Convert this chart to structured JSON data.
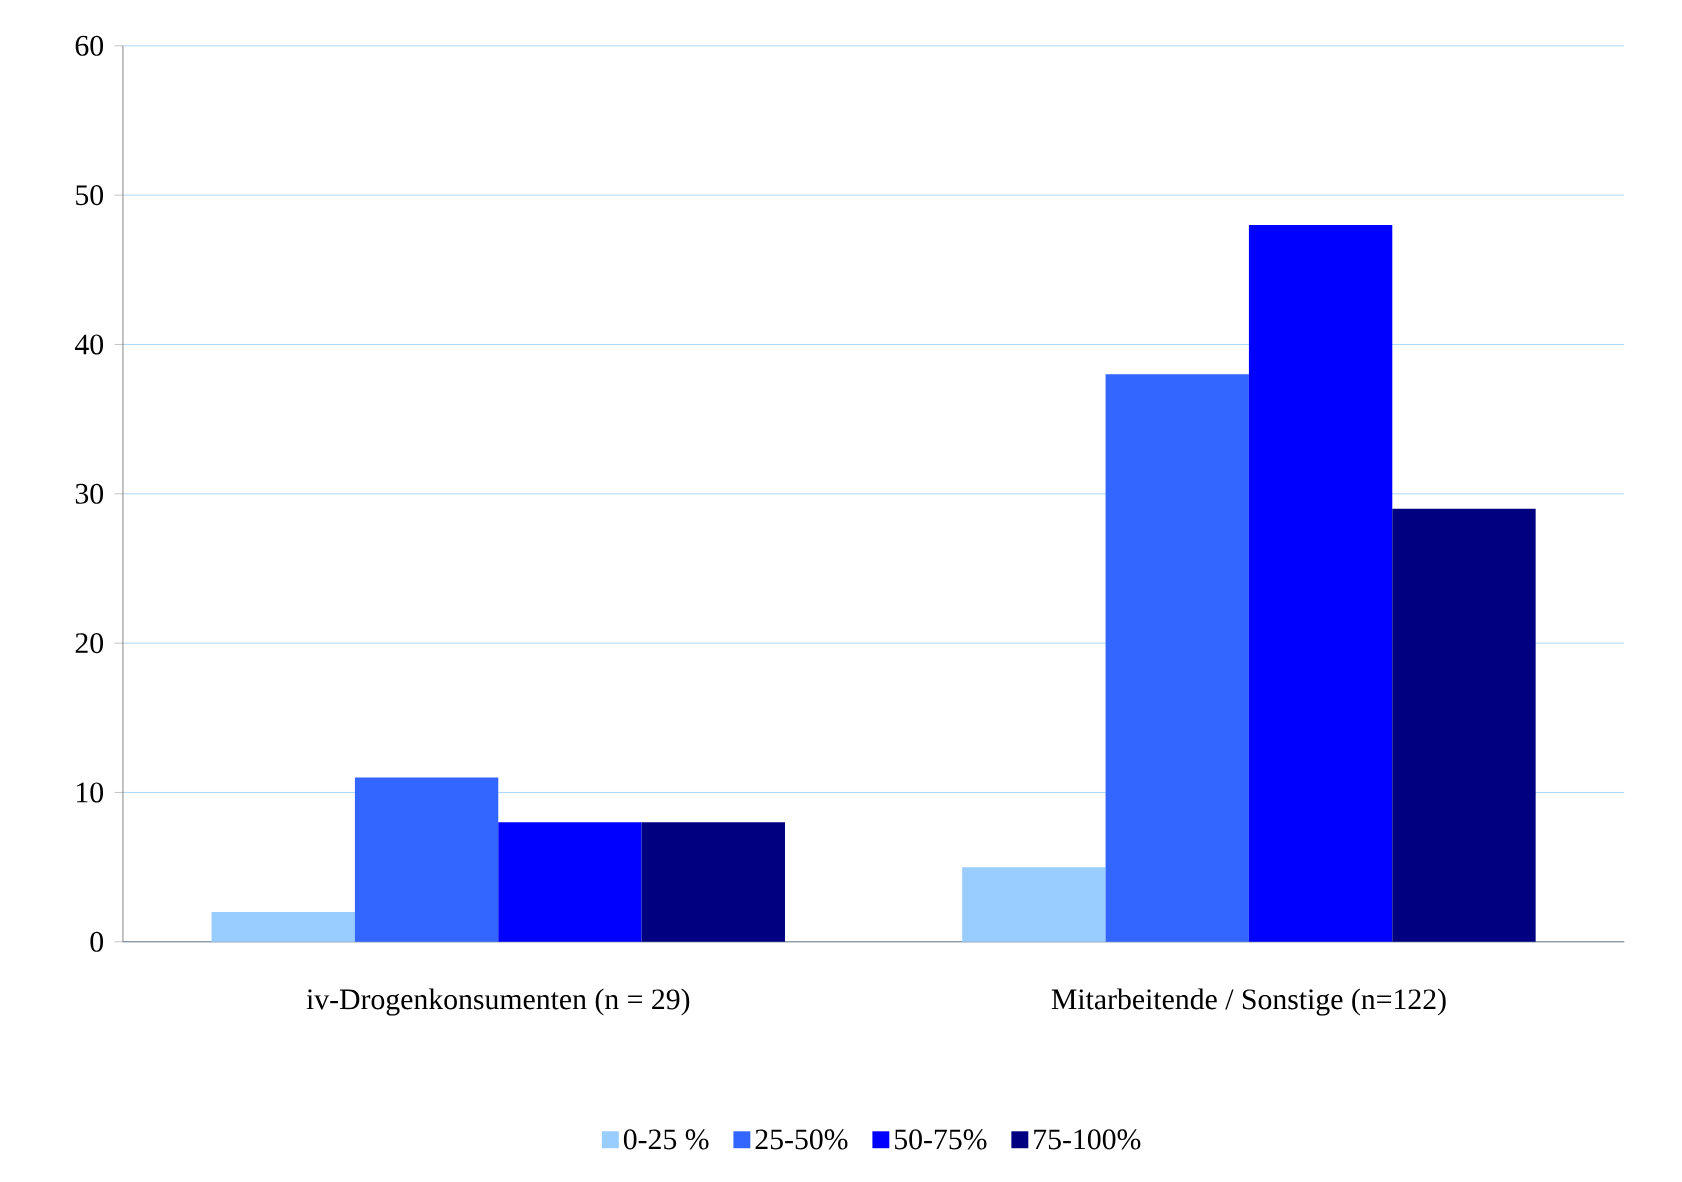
{
  "chart_data": {
    "type": "bar",
    "categories": [
      "iv-Drogenkonsumenten (n = 29)",
      "Mitarbeitende  / Sonstige (n=122)"
    ],
    "series": [
      {
        "name": "0-25 %",
        "color": "#99ccff",
        "values": [
          2,
          5
        ]
      },
      {
        "name": "25-50%",
        "color": "#3366ff",
        "values": [
          11,
          38
        ]
      },
      {
        "name": "50-75%",
        "color": "#0000ff",
        "values": [
          8,
          48
        ]
      },
      {
        "name": "75-100%",
        "color": "#000080",
        "values": [
          8,
          29
        ]
      }
    ],
    "ylim": [
      0,
      60
    ],
    "yticks": [
      0,
      10,
      20,
      30,
      40,
      50,
      60
    ],
    "grid": "y",
    "legend": "bottom"
  }
}
